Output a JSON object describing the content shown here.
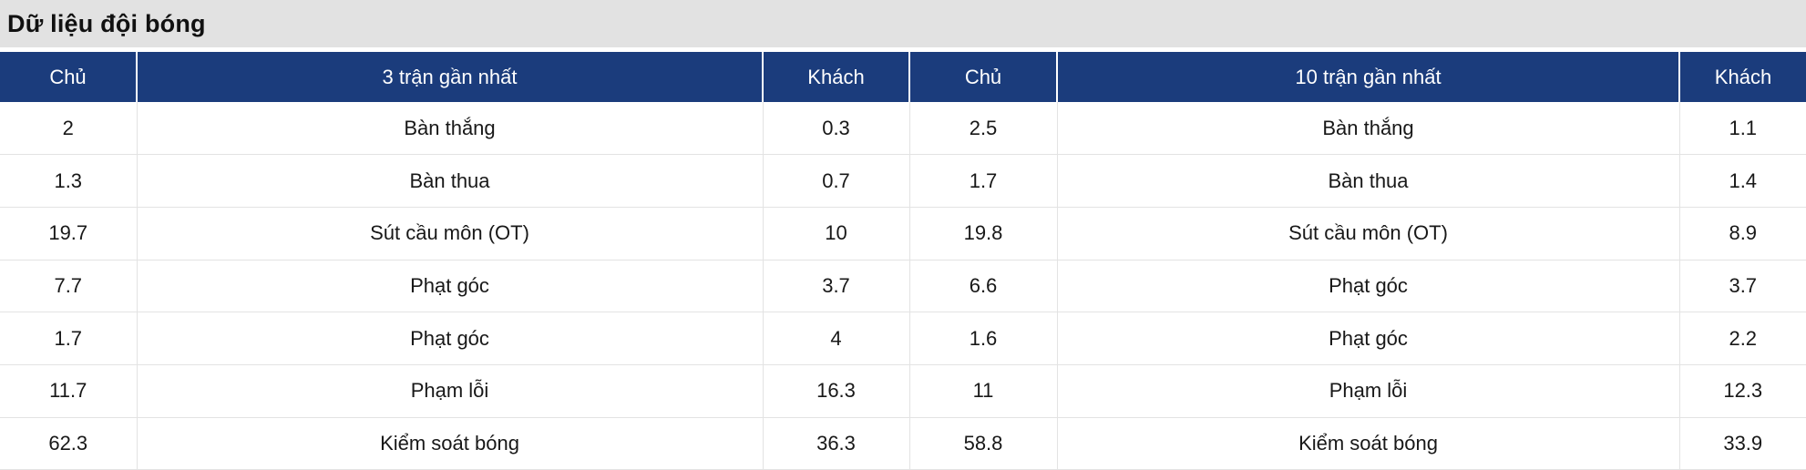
{
  "title": "Dữ liệu đội bóng",
  "colors": {
    "header_bg": "#1b3c7c",
    "header_text": "#ffffff",
    "title_bg": "#e2e2e2",
    "row_border": "#e3e3e3",
    "body_text": "#181818"
  },
  "table": {
    "headers": [
      "Chủ",
      "3 trận gần nhất",
      "Khách",
      "Chủ",
      "10 trận gần nhất",
      "Khách"
    ],
    "rows": [
      [
        "2",
        "Bàn thắng",
        "0.3",
        "2.5",
        "Bàn thắng",
        "1.1"
      ],
      [
        "1.3",
        "Bàn thua",
        "0.7",
        "1.7",
        "Bàn thua",
        "1.4"
      ],
      [
        "19.7",
        "Sút cầu môn (OT)",
        "10",
        "19.8",
        "Sút cầu môn (OT)",
        "8.9"
      ],
      [
        "7.7",
        "Phạt góc",
        "3.7",
        "6.6",
        "Phạt góc",
        "3.7"
      ],
      [
        "1.7",
        "Phạt góc",
        "4",
        "1.6",
        "Phạt góc",
        "2.2"
      ],
      [
        "11.7",
        "Phạm lỗi",
        "16.3",
        "11",
        "Phạm lỗi",
        "12.3"
      ],
      [
        "62.3",
        "Kiểm soát bóng",
        "36.3",
        "58.8",
        "Kiểm soát bóng",
        "33.9"
      ]
    ]
  }
}
